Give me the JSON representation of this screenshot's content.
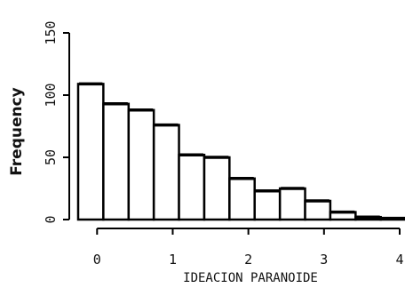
{
  "chart_data": {
    "type": "bar",
    "histogram": true,
    "title": "",
    "xlabel": "IDEACION PARANOIDE",
    "ylabel": "Frequency",
    "bin_edges": [
      -0.25,
      0.083,
      0.417,
      0.75,
      1.083,
      1.417,
      1.75,
      2.083,
      2.417,
      2.75,
      3.083,
      3.417,
      3.75,
      4.083
    ],
    "values": [
      109,
      93,
      88,
      76,
      52,
      50,
      33,
      23,
      25,
      15,
      6,
      2,
      1
    ],
    "xlim": [
      -0.25,
      4.0
    ],
    "ylim": [
      0,
      155
    ],
    "xticks": [
      0,
      1,
      2,
      3,
      4
    ],
    "xtick_labels": [
      "0",
      "1",
      "2",
      "3",
      "4"
    ],
    "yticks": [
      0,
      50,
      100,
      150
    ],
    "ytick_labels": [
      "0",
      "50",
      "100",
      "150"
    ],
    "bar_fill": "#ffffff",
    "bar_stroke": "#000000",
    "grid": false,
    "legend": "none"
  }
}
